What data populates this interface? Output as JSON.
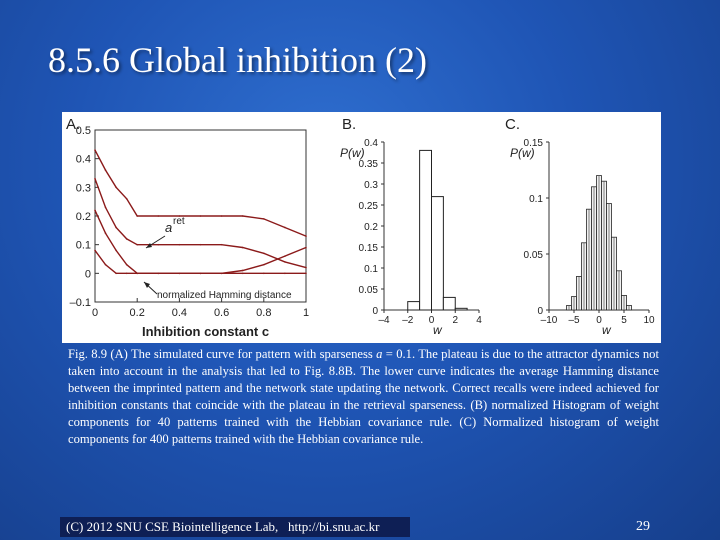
{
  "slide": {
    "title": "8.5.6 Global inhibition (2)",
    "footer": "(C) 2012 SNU CSE Biointelligence Lab,   http://bi.snu.ac.kr",
    "page_number": "29",
    "background_color": "#1f55b5"
  },
  "figure": {
    "panel_a": {
      "label": "A.",
      "xlabel": "Inhibition constant c",
      "ytick_labels": [
        "0.5",
        "0.4",
        "0.3",
        "0.2",
        "0.1",
        "0",
        "–0.1"
      ],
      "xtick_labels": [
        "0",
        "0.2",
        "0.4",
        "0.6",
        "0.8",
        "1"
      ],
      "curve_label_a": "a",
      "curve_label_ret": "ret",
      "curve_label_hamming": "normalized Hamming distance"
    },
    "panel_b": {
      "label": "B.",
      "ylabel": "P(w)",
      "xlabel": "w",
      "ytick_labels": [
        "0.4",
        "0.35",
        "0.3",
        "0.25",
        "0.2",
        "0.15",
        "0.1",
        "0.05",
        "0"
      ],
      "xtick_labels": [
        "–4",
        "–2",
        "0",
        "2",
        "4"
      ]
    },
    "panel_c": {
      "label": "C.",
      "ylabel": "P(w)",
      "xlabel": "w",
      "ytick_labels": [
        "0.15",
        "0.1",
        "0.05",
        "0"
      ],
      "xtick_labels": [
        "–10",
        "–5",
        "0",
        "5",
        "10"
      ]
    }
  },
  "caption": {
    "part1": "Fig. 8.9 (A) The simulated curve for pattern with sparseness ",
    "var": "a",
    "part2": " = 0.1. The plateau is due to the attractor dynamics not taken into account in the analysis that led to Fig. 8.8B. The lower curve indicates the average Hamming distance between the imprinted pattern and the network state updating the network. Correct recalls were indeed achieved for inhibition constants that coincide with the plateau in the retrieval sparseness. (B) normalized Histogram of weight components for 40 patterns trained with the Hebbian covariance rule. (C) Normalized histogram of weight components for 400 patterns trained with the Hebbian covariance rule."
  },
  "chart_data": [
    {
      "type": "line",
      "title": "",
      "xlabel": "Inhibition constant c",
      "ylabel": "",
      "xlim": [
        0,
        1
      ],
      "ylim": [
        -0.1,
        0.5
      ],
      "series": [
        {
          "name": "a_ret",
          "x": [
            0,
            0.05,
            0.1,
            0.15,
            0.2,
            0.3,
            0.4,
            0.5,
            0.6,
            0.7,
            0.8,
            0.9,
            1.0
          ],
          "y": [
            0.43,
            0.36,
            0.3,
            0.26,
            0.2,
            0.2,
            0.2,
            0.2,
            0.2,
            0.2,
            0.19,
            0.16,
            0.13
          ]
        },
        {
          "name": "a_ret",
          "x": [
            0,
            0.05,
            0.1,
            0.15,
            0.2,
            0.3,
            0.4,
            0.5,
            0.6,
            0.7,
            0.8,
            0.9,
            1.0
          ],
          "y": [
            0.33,
            0.23,
            0.16,
            0.12,
            0.1,
            0.1,
            0.1,
            0.1,
            0.1,
            0.09,
            0.07,
            0.04,
            0.02
          ]
        },
        {
          "name": "normalized Hamming distance",
          "x": [
            0,
            0.05,
            0.1,
            0.15,
            0.2,
            0.3,
            0.4,
            0.5,
            0.6,
            0.7,
            0.8,
            0.9,
            1.0
          ],
          "y": [
            0.22,
            0.14,
            0.08,
            0.03,
            0.0,
            0.0,
            0.0,
            0.0,
            0.0,
            0.01,
            0.03,
            0.06,
            0.09
          ]
        },
        {
          "name": "normalized Hamming distance",
          "x": [
            0,
            0.05,
            0.1,
            0.15,
            0.2,
            0.3,
            0.4,
            0.5,
            0.6,
            0.7,
            0.8,
            0.9,
            1.0
          ],
          "y": [
            0.08,
            0.03,
            0.0,
            0.0,
            0.0,
            0.0,
            0.0,
            0.0,
            0.0,
            0.0,
            0.0,
            0.0,
            0.0
          ]
        }
      ]
    },
    {
      "type": "bar",
      "title": "",
      "xlabel": "w",
      "ylabel": "P(w)",
      "xlim": [
        -4,
        4
      ],
      "ylim": [
        0,
        0.4
      ],
      "x": [
        -1.5,
        -0.5,
        0.5,
        1.5,
        2.5
      ],
      "values": [
        0.02,
        0.38,
        0.27,
        0.03,
        0.004
      ]
    },
    {
      "type": "bar",
      "title": "",
      "xlabel": "w",
      "ylabel": "P(w)",
      "xlim": [
        -10,
        10
      ],
      "ylim": [
        0,
        0.15
      ],
      "x": [
        -6,
        -5,
        -4,
        -3,
        -2,
        -1,
        0,
        1,
        2,
        3,
        4,
        5,
        6
      ],
      "values": [
        0.004,
        0.012,
        0.03,
        0.06,
        0.09,
        0.11,
        0.12,
        0.115,
        0.095,
        0.065,
        0.035,
        0.013,
        0.004
      ]
    }
  ]
}
